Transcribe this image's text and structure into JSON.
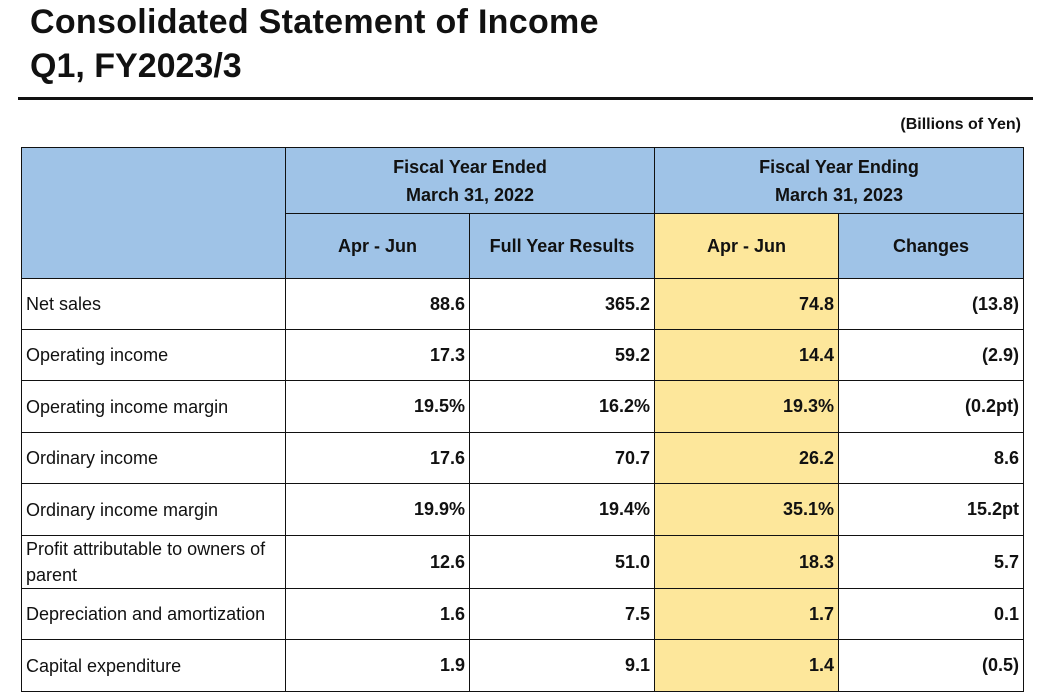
{
  "title": {
    "line1": "Consolidated Statement of Income",
    "line2": "Q1, FY2023/3"
  },
  "unit": "(Billions of Yen)",
  "header": {
    "group1_line1": "Fiscal Year Ended",
    "group1_line2": "March 31, 2022",
    "group2_line1": "Fiscal Year Ending",
    "group2_line2": "March 31, 2023",
    "col1": "Apr - Jun",
    "col2": "Full Year Results",
    "col3": "Apr - Jun",
    "col4": "Changes"
  },
  "rows": [
    {
      "label": "Net sales",
      "v1": "88.6",
      "v2": "365.2",
      "v3": "74.8",
      "v4": "(13.8)"
    },
    {
      "label": "Operating income",
      "v1": "17.3",
      "v2": "59.2",
      "v3": "14.4",
      "v4": "(2.9)"
    },
    {
      "label": "Operating income margin",
      "v1": "19.5%",
      "v2": "16.2%",
      "v3": "19.3%",
      "v4": "(0.2pt)"
    },
    {
      "label": "Ordinary income",
      "v1": "17.6",
      "v2": "70.7",
      "v3": "26.2",
      "v4": "8.6"
    },
    {
      "label": "Ordinary income margin",
      "v1": "19.9%",
      "v2": "19.4%",
      "v3": "35.1%",
      "v4": "15.2pt"
    },
    {
      "label": "Profit attributable to owners of parent",
      "v1": "12.6",
      "v2": "51.0",
      "v3": "18.3",
      "v4": "5.7"
    },
    {
      "label": "Depreciation and amortization",
      "v1": "1.6",
      "v2": "7.5",
      "v3": "1.7",
      "v4": "0.1"
    },
    {
      "label": "Capital expenditure",
      "v1": "1.9",
      "v2": "9.1",
      "v3": "1.4",
      "v4": "(0.5)"
    }
  ],
  "colors": {
    "header_blue": "#9fc3e7",
    "highlight_yellow": "#fde79b"
  }
}
